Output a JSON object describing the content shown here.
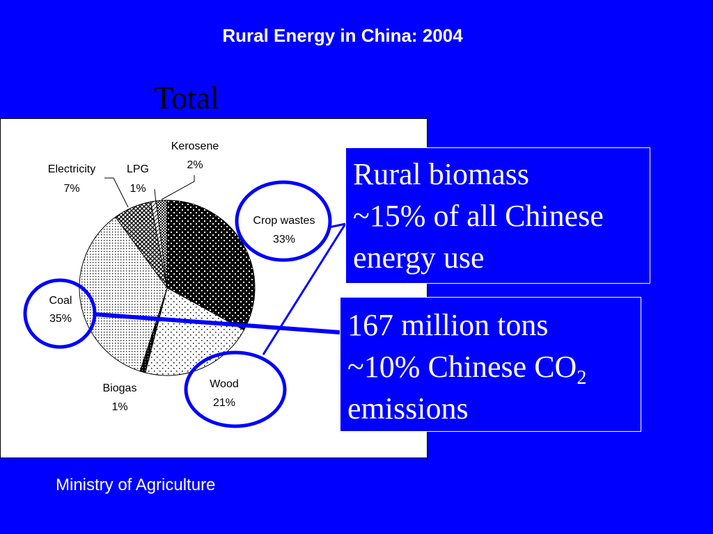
{
  "slide": {
    "title": "Rural Energy in China: 2004",
    "source": "Ministry of Agriculture"
  },
  "callouts": {
    "biomass": {
      "line1": "Rural biomass",
      "line2": "~15% of all Chinese",
      "line3": "energy use"
    },
    "emissions": {
      "line1": "167 million tons",
      "line2_prefix": "~10% Chinese CO",
      "line2_sub": "2",
      "line3": "emissions"
    }
  },
  "colors": {
    "background": "#0000ff",
    "text": "#ffffff",
    "highlight": "#0000ff"
  },
  "chart_data": {
    "type": "pie",
    "title": "Total",
    "slices": [
      {
        "name": "Crop wastes",
        "label": "33%",
        "value": 33
      },
      {
        "name": "Wood",
        "label": "21%",
        "value": 21
      },
      {
        "name": "Biogas",
        "label": "1%",
        "value": 1
      },
      {
        "name": "Coal",
        "label": "35%",
        "value": 35
      },
      {
        "name": "Electricity",
        "label": "7%",
        "value": 7
      },
      {
        "name": "LPG",
        "label": "1%",
        "value": 1
      },
      {
        "name": "Kerosene",
        "label": "2%",
        "value": 2
      }
    ],
    "highlighted": [
      "Crop wastes",
      "Wood",
      "Coal"
    ]
  }
}
